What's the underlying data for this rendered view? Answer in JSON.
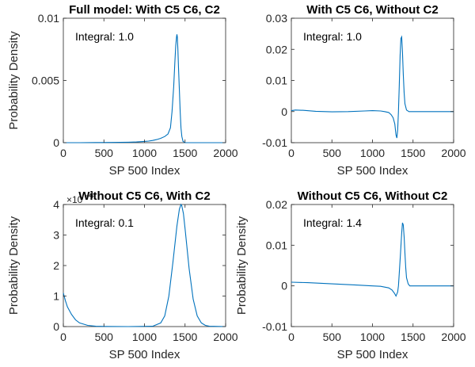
{
  "chart_data": [
    {
      "type": "line",
      "title": "Full model: With C5 C6, C2",
      "xlabel": "SP 500 Index",
      "ylabel": "Probability Density",
      "xlim": [
        0,
        2000
      ],
      "ylim": [
        0,
        0.01
      ],
      "xticks": [
        "0",
        "500",
        "1000",
        "1500",
        "2000"
      ],
      "yticks": [
        "0",
        "0.005",
        "0.01"
      ],
      "exponent": "",
      "annotation": "Integral: 1.0",
      "grid": false,
      "line_color": "#0072BD",
      "series": [
        {
          "x": [
            0,
            200,
            400,
            600,
            800,
            900,
            1000,
            1050,
            1100,
            1150,
            1200,
            1250,
            1290,
            1320,
            1340,
            1360,
            1375,
            1385,
            1395,
            1400,
            1405,
            1412,
            1420,
            1430,
            1440,
            1450,
            1460,
            1475,
            1500,
            1600,
            2000
          ],
          "y": [
            0,
            0,
            1e-05,
            2e-05,
            4e-05,
            6e-05,
            0.0001,
            0.00013,
            0.00018,
            0.00025,
            0.00035,
            0.0005,
            0.0007,
            0.0012,
            0.0025,
            0.0045,
            0.0065,
            0.0078,
            0.0085,
            0.0087,
            0.0085,
            0.0075,
            0.006,
            0.0042,
            0.0025,
            0.0012,
            0.0005,
            0.0001,
            0,
            0,
            0
          ]
        }
      ]
    },
    {
      "type": "line",
      "title": "With C5 C6, Without C2",
      "xlabel": "SP 500 Index",
      "ylabel": "",
      "xlim": [
        0,
        2000
      ],
      "ylim": [
        -0.01,
        0.03
      ],
      "xticks": [
        "0",
        "500",
        "1000",
        "1500",
        "2000"
      ],
      "yticks": [
        "-0.01",
        "0",
        "0.01",
        "0.02",
        "0.03"
      ],
      "exponent": "",
      "annotation": "Integral: 1.0",
      "grid": false,
      "line_color": "#0072BD",
      "series": [
        {
          "x": [
            0,
            50,
            150,
            300,
            500,
            700,
            900,
            1000,
            1100,
            1150,
            1200,
            1230,
            1255,
            1275,
            1290,
            1300,
            1310,
            1320,
            1330,
            1340,
            1350,
            1360,
            1370,
            1380,
            1390,
            1400,
            1420,
            1450,
            1500,
            2000
          ],
          "y": [
            0.0003,
            0.0005,
            0.0004,
            0.0001,
            -0.0001,
            0,
            0.0002,
            0.0003,
            0.0002,
            0,
            -0.0003,
            -0.001,
            -0.002,
            -0.004,
            -0.0075,
            -0.0085,
            -0.006,
            0,
            0.008,
            0.018,
            0.0235,
            0.024,
            0.019,
            0.012,
            0.006,
            0.0025,
            0.0005,
            0,
            0,
            0
          ]
        }
      ]
    },
    {
      "type": "line",
      "title": "Without C5 C6, With C2",
      "xlabel": "SP 500 Index",
      "ylabel": "Probability Density",
      "xlim": [
        0,
        2000
      ],
      "ylim": [
        0,
        4
      ],
      "xticks": [
        "0",
        "500",
        "1000",
        "1500",
        "2000"
      ],
      "yticks": [
        "0",
        "1",
        "2",
        "3",
        "4"
      ],
      "exponent": "×10",
      "annotation": "Integral: 0.1",
      "grid": false,
      "line_color": "#0072BD",
      "series": [
        {
          "x": [
            0,
            25,
            50,
            100,
            150,
            200,
            300,
            400,
            500,
            800,
            1100,
            1200,
            1250,
            1300,
            1350,
            1400,
            1430,
            1450,
            1460,
            1480,
            1500,
            1550,
            1600,
            1650,
            1700,
            1750,
            1800,
            2000
          ],
          "y": [
            1.1,
            0.85,
            0.65,
            0.4,
            0.22,
            0.12,
            0.04,
            0.01,
            0.005,
            0,
            0.01,
            0.12,
            0.35,
            1.0,
            2.1,
            3.3,
            3.85,
            4.0,
            3.95,
            3.7,
            3.2,
            1.9,
            0.9,
            0.35,
            0.12,
            0.04,
            0.01,
            0
          ]
        }
      ]
    },
    {
      "type": "line",
      "title": "Without C5 C6, Without C2",
      "xlabel": "SP 500 Index",
      "ylabel": "Probability Density",
      "xlim": [
        0,
        2000
      ],
      "ylim": [
        -0.01,
        0.02
      ],
      "xticks": [
        "0",
        "500",
        "1000",
        "1500",
        "2000"
      ],
      "yticks": [
        "-0.01",
        "0",
        "0.01",
        "0.02"
      ],
      "exponent": "",
      "annotation": "Integral: 1.4",
      "grid": false,
      "line_color": "#0072BD",
      "series": [
        {
          "x": [
            0,
            200,
            400,
            600,
            800,
            1000,
            1100,
            1150,
            1200,
            1240,
            1270,
            1290,
            1310,
            1320,
            1330,
            1345,
            1360,
            1370,
            1380,
            1390,
            1400,
            1410,
            1420,
            1440,
            1460,
            1500,
            2000
          ],
          "y": [
            0.0009,
            0.0008,
            0.0006,
            0.0004,
            0.0002,
            0,
            -0.0001,
            -0.0003,
            -0.0005,
            -0.001,
            -0.0018,
            -0.0025,
            -0.0015,
            0,
            0.003,
            0.008,
            0.013,
            0.0155,
            0.015,
            0.012,
            0.008,
            0.0045,
            0.002,
            0.0005,
            0,
            0,
            0
          ]
        }
      ]
    }
  ]
}
